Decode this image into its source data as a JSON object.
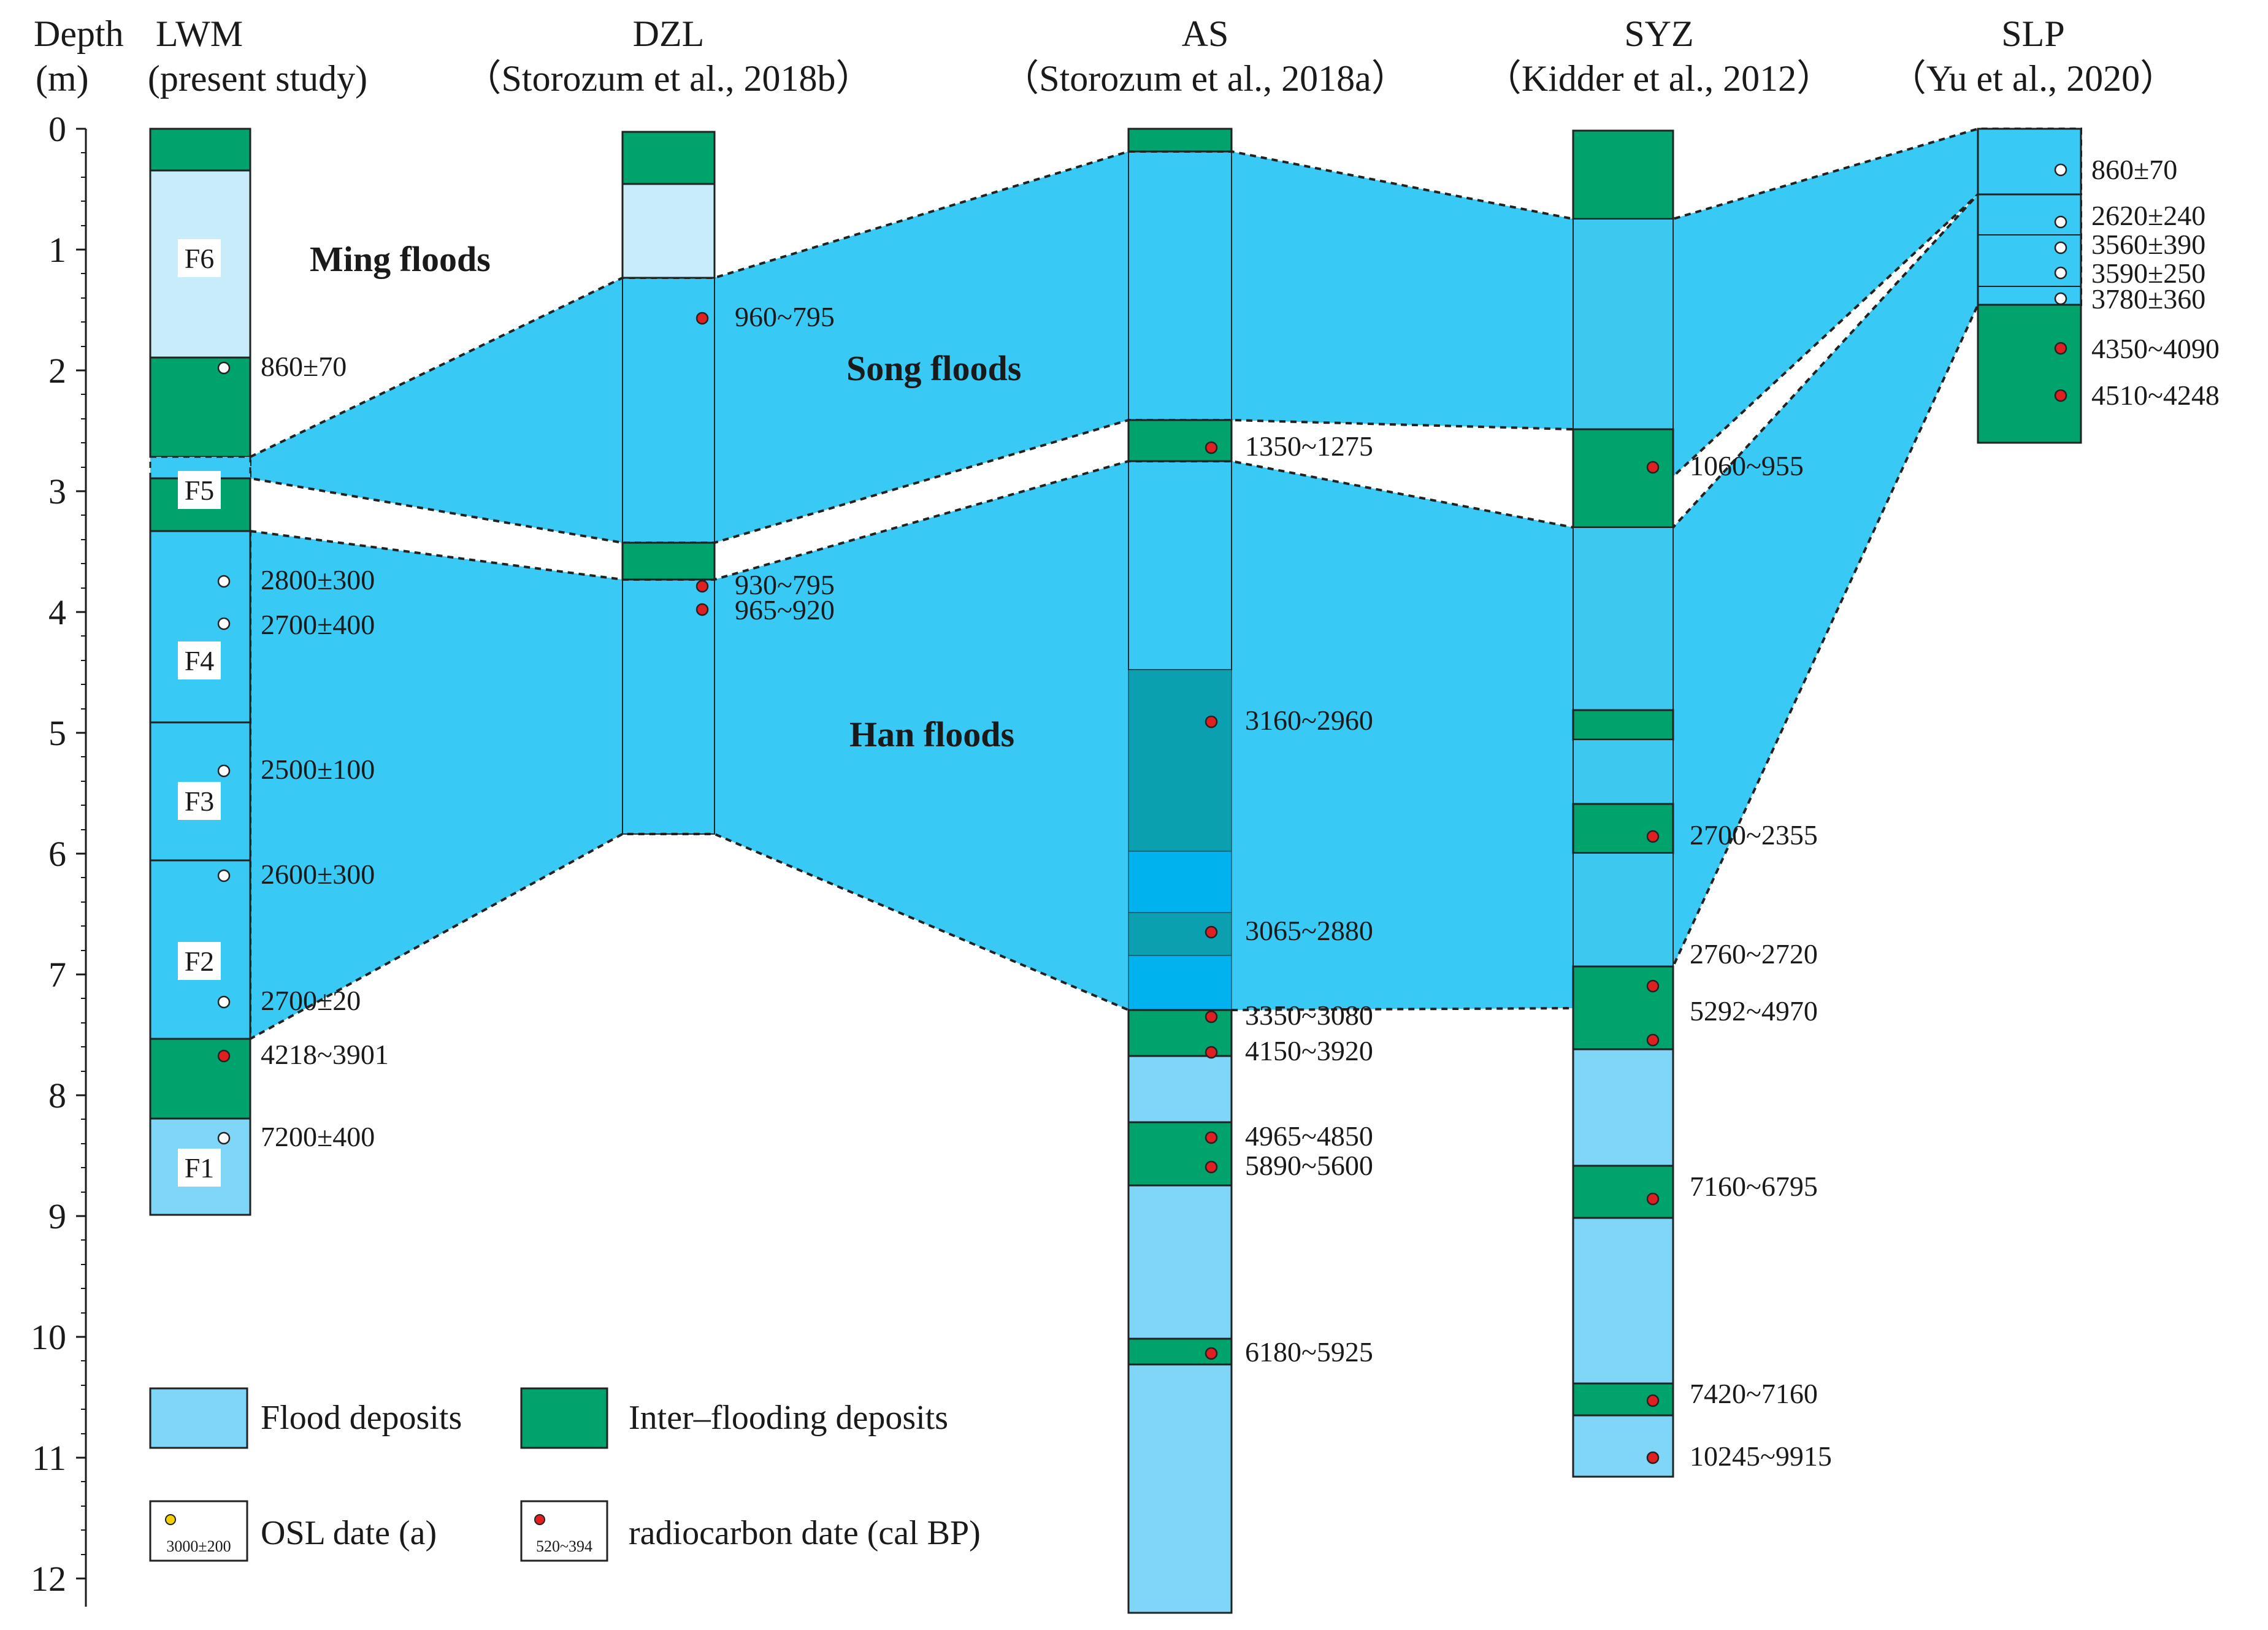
{
  "axis": {
    "title_line1": "Depth",
    "title_line2": "(m)",
    "ticks": [
      "0",
      "1",
      "2",
      "3",
      "4",
      "5",
      "6",
      "7",
      "8",
      "9",
      "10",
      "11",
      "12"
    ]
  },
  "columns": [
    {
      "name": "LWM",
      "source": "(present study)"
    },
    {
      "name": "DZL",
      "source": "（Storozum  et al., 2018b）"
    },
    {
      "name": "AS",
      "source": "（Storozum  et al., 2018a）"
    },
    {
      "name": "SYZ",
      "source": "（Kidder  et al., 2012）"
    },
    {
      "name": "SLP",
      "source": "（Yu  et al., 2020）"
    }
  ],
  "units": [
    "F6",
    "F5",
    "F4",
    "F3",
    "F2",
    "F1"
  ],
  "events": {
    "ming": "Ming floods",
    "song": "Song floods",
    "han": "Han floods"
  },
  "dates": {
    "lwm": [
      "860±70",
      "2800±300",
      "2700±400",
      "2500±100",
      "2600±300",
      "2700±20",
      "4218~3901",
      "7200±400"
    ],
    "dzl": [
      "960~795",
      "930~795",
      "965~920"
    ],
    "as": [
      "1350~1275",
      "3160~2960",
      "3065~2880",
      "3350~3080",
      "4150~3920",
      "4965~4850",
      "5890~5600",
      "6180~5925"
    ],
    "syz": [
      "1060~955",
      "2700~2355",
      "2760~2720",
      "5292~4970",
      "7160~6795",
      "7420~7160",
      "10245~9915"
    ],
    "slp": [
      "860±70",
      "2620±240",
      "3560±390",
      "3590±250",
      "3780±360",
      "4350~4090",
      "4510~4248"
    ]
  },
  "legend": {
    "flood": "Flood deposits",
    "inter": "Inter–flooding deposits",
    "osl": "OSL  date  (a)",
    "osl_sample": "3000±200",
    "radio": "radiocarbon date (cal BP)",
    "radio_sample": "520~394"
  },
  "colors": {
    "flood_light": "#7fd6f7",
    "flood_pale": "#c9ecfb",
    "flood_band": "#39c9f5",
    "inter": "#00a36c",
    "teal_dark": "#0aa0b0",
    "blue_bright": "#00b3ef",
    "radiocarbon": "#e02020",
    "osl_legend": "#f5d000"
  }
}
